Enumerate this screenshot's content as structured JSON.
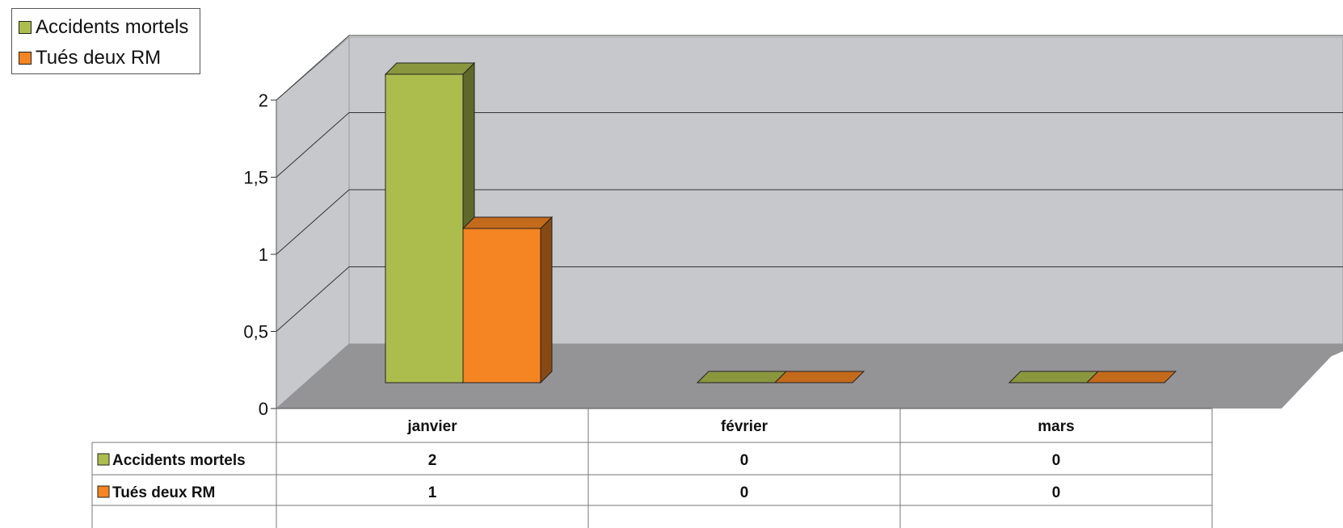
{
  "chart_data": {
    "type": "bar",
    "categories": [
      "janvier",
      "février",
      "mars"
    ],
    "series": [
      {
        "name": "Accidents mortels",
        "values": [
          2,
          0,
          0
        ],
        "color": "#adbd4d"
      },
      {
        "name": "Tués deux RM",
        "values": [
          1,
          0,
          0
        ],
        "color": "#f58422"
      }
    ],
    "yticks": [
      "0",
      "0,5",
      "1",
      "1,5",
      "2"
    ],
    "ylim": [
      0,
      2
    ],
    "grid": true,
    "legend_position": "top-left",
    "data_table": true
  }
}
